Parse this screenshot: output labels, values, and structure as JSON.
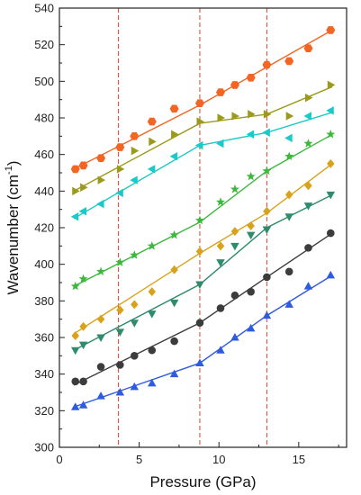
{
  "chart_data": {
    "type": "scatter",
    "title": "",
    "xlabel": "Pressure (GPa)",
    "ylabel_main": "Wavenumber (cm",
    "ylabel_sup": "-1",
    "ylabel_close": ")",
    "xlim": [
      0,
      18
    ],
    "ylim": [
      300,
      540
    ],
    "xticks": [
      0,
      5,
      10,
      15
    ],
    "yticks": [
      300,
      320,
      340,
      360,
      380,
      400,
      420,
      440,
      460,
      480,
      500,
      520,
      540
    ],
    "grid": false,
    "legend": "none",
    "vlines": [
      {
        "x": 3.7,
        "color": "#d9543a"
      },
      {
        "x": 8.8,
        "color": "#d9543a"
      },
      {
        "x": 13.0,
        "color": "#d9543a"
      }
    ],
    "series": [
      {
        "marker": "hexagon",
        "color": "#f26522",
        "x": [
          1.0,
          1.5,
          2.6,
          3.8,
          4.7,
          5.8,
          7.2,
          8.8,
          10.1,
          11.0,
          12.0,
          13.0,
          14.4,
          15.6,
          17.0
        ],
        "y": [
          452,
          454,
          458,
          464,
          470,
          478,
          485,
          488,
          494,
          498,
          502,
          509,
          511,
          518,
          528
        ],
        "fit": [
          [
            0.9,
            452
          ],
          [
            8.8,
            487
          ],
          [
            17.1,
            528
          ]
        ]
      },
      {
        "marker": "triangle-right",
        "color": "#9c9a1c",
        "x": [
          1.0,
          1.5,
          2.6,
          3.8,
          4.7,
          5.8,
          7.2,
          8.8,
          10.1,
          11.0,
          12.0,
          13.0,
          14.4,
          15.6,
          17.0
        ],
        "y": [
          440,
          442,
          446,
          452,
          462,
          467,
          471,
          478,
          480,
          481,
          482,
          482,
          481,
          491,
          498
        ],
        "fit": [
          [
            0.9,
            440
          ],
          [
            8.8,
            477
          ],
          [
            13.0,
            482
          ],
          [
            17.1,
            497
          ]
        ]
      },
      {
        "marker": "triangle-left",
        "color": "#1cc9c9",
        "x": [
          1.0,
          1.5,
          2.6,
          3.8,
          4.7,
          5.8,
          7.2,
          8.8,
          10.1,
          12.0,
          13.0,
          14.4,
          15.6,
          17.0
        ],
        "y": [
          426,
          429,
          433,
          439,
          446,
          452,
          459,
          465,
          466,
          471,
          472,
          469,
          481,
          484
        ],
        "fit": [
          [
            0.9,
            425
          ],
          [
            8.8,
            465
          ],
          [
            13.0,
            472
          ],
          [
            17.1,
            483
          ]
        ]
      },
      {
        "marker": "star",
        "color": "#3cb83c",
        "x": [
          1.0,
          1.5,
          2.6,
          3.8,
          4.7,
          5.8,
          7.2,
          8.8,
          10.1,
          11.0,
          12.0,
          13.0,
          14.4,
          15.6,
          17.0
        ],
        "y": [
          388,
          392,
          396,
          401,
          405,
          410,
          416,
          424,
          434,
          441,
          448,
          451,
          459,
          466,
          471
        ],
        "fit": [
          [
            0.9,
            388
          ],
          [
            8.8,
            423
          ],
          [
            13.0,
            451
          ],
          [
            17.1,
            471
          ]
        ]
      },
      {
        "marker": "diamond",
        "color": "#d9a21b",
        "x": [
          1.0,
          1.5,
          2.6,
          3.8,
          4.7,
          5.8,
          7.2,
          8.8,
          10.1,
          11.0,
          12.0,
          13.0,
          14.4,
          15.6,
          17.0
        ],
        "y": [
          361,
          366,
          370,
          375,
          378,
          385,
          397,
          407,
          410,
          418,
          421,
          429,
          438,
          443,
          455
        ],
        "fit": [
          [
            0.9,
            362
          ],
          [
            8.8,
            406
          ],
          [
            13.0,
            428
          ],
          [
            17.1,
            455
          ]
        ]
      },
      {
        "marker": "triangle-down",
        "color": "#2e8b6e",
        "x": [
          1.0,
          1.5,
          2.6,
          3.8,
          4.7,
          5.8,
          7.2,
          8.8,
          10.1,
          11.0,
          12.0,
          13.0,
          14.4,
          15.6,
          17.0
        ],
        "y": [
          353,
          356,
          360,
          363,
          368,
          373,
          379,
          389,
          401,
          410,
          416,
          419,
          426,
          432,
          438
        ],
        "fit": [
          [
            0.9,
            353
          ],
          [
            8.8,
            389
          ],
          [
            13.0,
            420
          ],
          [
            17.1,
            438
          ]
        ]
      },
      {
        "marker": "circle",
        "color": "#3c3c3c",
        "x": [
          1.0,
          1.5,
          2.6,
          3.8,
          4.7,
          5.8,
          7.2,
          8.8,
          10.1,
          11.0,
          12.0,
          13.0,
          14.4,
          15.6,
          17.0
        ],
        "y": [
          336,
          336,
          344,
          345,
          350,
          353,
          358,
          368,
          376,
          383,
          385,
          393,
          396,
          409,
          417
        ],
        "fit": [
          [
            0.9,
            334
          ],
          [
            8.8,
            368
          ],
          [
            13.0,
            393
          ],
          [
            17.1,
            417
          ]
        ]
      },
      {
        "marker": "triangle-up",
        "color": "#2e5be0",
        "x": [
          1.0,
          1.5,
          2.6,
          3.8,
          4.7,
          5.8,
          7.2,
          8.8,
          10.1,
          11.0,
          12.0,
          13.0,
          14.4,
          15.6,
          17.0
        ],
        "y": [
          322,
          323,
          328,
          330,
          333,
          335,
          340,
          346,
          353,
          360,
          365,
          372,
          378,
          388,
          394
        ],
        "fit": [
          [
            0.9,
            322
          ],
          [
            8.8,
            346
          ],
          [
            13.0,
            372
          ],
          [
            17.1,
            394
          ]
        ]
      }
    ]
  }
}
